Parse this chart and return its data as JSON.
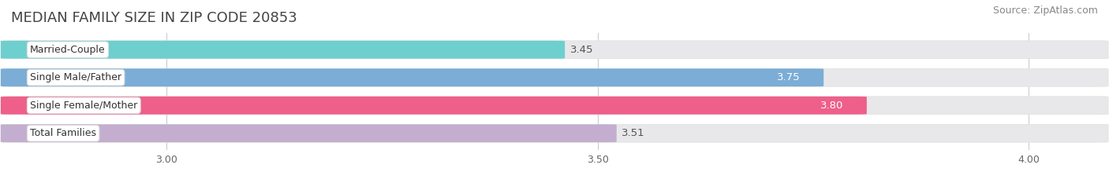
{
  "title": "MEDIAN FAMILY SIZE IN ZIP CODE 20853",
  "source": "Source: ZipAtlas.com",
  "categories": [
    "Married-Couple",
    "Single Male/Father",
    "Single Female/Mother",
    "Total Families"
  ],
  "values": [
    3.45,
    3.75,
    3.8,
    3.51
  ],
  "bar_colors": [
    "#6ECFCF",
    "#7BADD6",
    "#EE5F8A",
    "#C4AECF"
  ],
  "value_inside": [
    false,
    true,
    true,
    false
  ],
  "xlim": [
    2.82,
    4.08
  ],
  "xticks": [
    3.0,
    3.5,
    4.0
  ],
  "background_color": "#ffffff",
  "bar_bg_color": "#e8e8ea",
  "title_fontsize": 13,
  "source_fontsize": 9,
  "cat_fontsize": 9,
  "value_fontsize": 9.5,
  "bar_height": 0.62,
  "bar_gap": 0.38
}
